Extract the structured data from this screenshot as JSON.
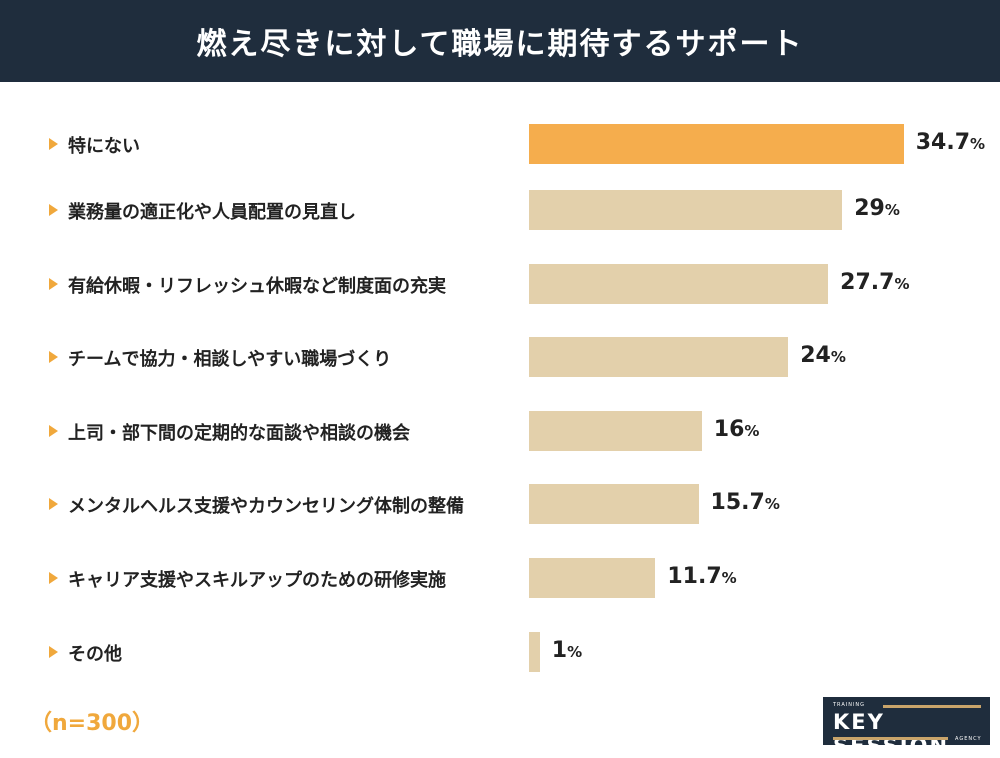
{
  "title": "燃え尽きに対して職場に期待するサポート",
  "sample": "（n=300）",
  "logo": {
    "text": "KEY SESSION",
    "small_top": "TRAINING",
    "small_bottom": "AGENCY"
  },
  "colors": {
    "highlight": "#f5ad4d",
    "default": "#e3d0ab",
    "header": "#1f2d3d",
    "arrow": "#f0a83c"
  },
  "chart_data": {
    "type": "bar",
    "orientation": "horizontal",
    "title": "燃え尽きに対して職場に期待するサポート",
    "unit": "%",
    "categories": [
      "特にない",
      "業務量の適正化や人員配置の見直し",
      "有給休暇・リフレッシュ休暇など制度面の充実",
      "チームで協力・相談しやすい職場づくり",
      "上司・部下間の定期的な面談や相談の機会",
      "メンタルヘルス支援やカウンセリング体制の整備",
      "キャリア支援やスキルアップのための研修実施",
      "その他"
    ],
    "values": [
      34.7,
      29,
      27.7,
      24,
      16,
      15.7,
      11.7,
      1
    ],
    "value_labels": [
      "34.7",
      "29",
      "27.7",
      "24",
      "16",
      "15.7",
      "11.7",
      "1"
    ],
    "highlighted_index": 0
  }
}
